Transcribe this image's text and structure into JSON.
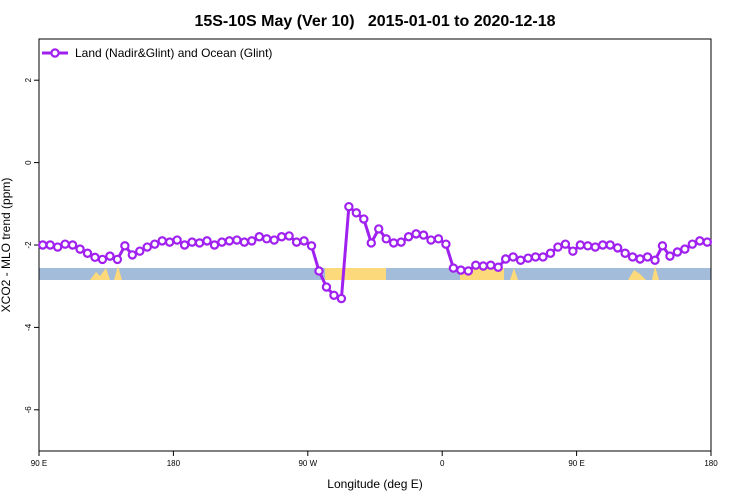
{
  "chart_data": {
    "type": "line",
    "title": "15S-10S May (Ver 10)   2015-01-01 to 2020-12-18",
    "xlabel": "Longitude (deg E)",
    "ylabel": "XCO2 - MLO trend (ppm)",
    "legend": "top-left",
    "xlim": [
      90,
      540
    ],
    "ylim": [
      -7,
      3
    ],
    "xticks": [
      {
        "value": 90,
        "label": "90 E"
      },
      {
        "value": 180,
        "label": "180"
      },
      {
        "value": 270,
        "label": "90 W"
      },
      {
        "value": 360,
        "label": "0"
      },
      {
        "value": 450,
        "label": "90 E"
      },
      {
        "value": 540,
        "label": "180"
      }
    ],
    "yticks": [
      2,
      0,
      -2,
      -4,
      -6
    ],
    "x": [
      92.5,
      97.5,
      102.5,
      107.5,
      112.5,
      117.5,
      122.5,
      127.5,
      132.5,
      137.5,
      142.5,
      147.5,
      152.5,
      157.5,
      162.5,
      167.5,
      172.5,
      177.5,
      182.5,
      187.5,
      192.5,
      197.5,
      202.5,
      207.5,
      212.5,
      217.5,
      222.5,
      227.5,
      232.5,
      237.5,
      242.5,
      247.5,
      252.5,
      257.5,
      262.5,
      267.5,
      272.5,
      277.5,
      282.5,
      287.5,
      292.5,
      297.5,
      302.5,
      307.5,
      312.5,
      317.5,
      322.5,
      327.5,
      332.5,
      337.5,
      342.5,
      347.5,
      352.5,
      357.5,
      362.5,
      367.5,
      372.5,
      377.5,
      382.5,
      387.5,
      392.5,
      397.5,
      402.5,
      407.5,
      412.5,
      417.5,
      422.5,
      427.5,
      432.5,
      437.5,
      442.5,
      447.5,
      452.5,
      457.5,
      462.5,
      467.5,
      472.5,
      477.5,
      482.5,
      487.5,
      492.5,
      497.5,
      502.5,
      507.5,
      512.5,
      517.5,
      522.5,
      527.5,
      532.5,
      537.5
    ],
    "series": [
      {
        "name": "Land (Nadir&Glint) and Ocean (Glint)",
        "color": "#a020f0",
        "values": [
          -2.0,
          -2.0,
          -2.05,
          -1.98,
          -2.0,
          -2.1,
          -2.2,
          -2.3,
          -2.35,
          -2.27,
          -2.35,
          -2.02,
          -2.24,
          -2.15,
          -2.05,
          -1.98,
          -1.9,
          -1.93,
          -1.88,
          -2.0,
          -1.93,
          -1.95,
          -1.9,
          -2.0,
          -1.93,
          -1.9,
          -1.88,
          -1.93,
          -1.9,
          -1.8,
          -1.85,
          -1.88,
          -1.8,
          -1.78,
          -1.93,
          -1.9,
          -2.02,
          -2.63,
          -3.02,
          -3.22,
          -3.3,
          -1.07,
          -1.22,
          -1.37,
          -1.95,
          -1.61,
          -1.85,
          -1.95,
          -1.93,
          -1.8,
          -1.73,
          -1.76,
          -1.88,
          -1.85,
          -1.98,
          -2.56,
          -2.61,
          -2.63,
          -2.49,
          -2.51,
          -2.49,
          -2.54,
          -2.34,
          -2.29,
          -2.37,
          -2.32,
          -2.29,
          -2.29,
          -2.2,
          -2.05,
          -1.98,
          -2.15,
          -2.0,
          -2.02,
          -2.05,
          -2.0,
          -2.0,
          -2.07,
          -2.2,
          -2.29,
          -2.34,
          -2.29,
          -2.37,
          -2.02,
          -2.27,
          -2.17,
          -2.1,
          -1.98,
          -1.9,
          -1.93
        ]
      }
    ]
  }
}
